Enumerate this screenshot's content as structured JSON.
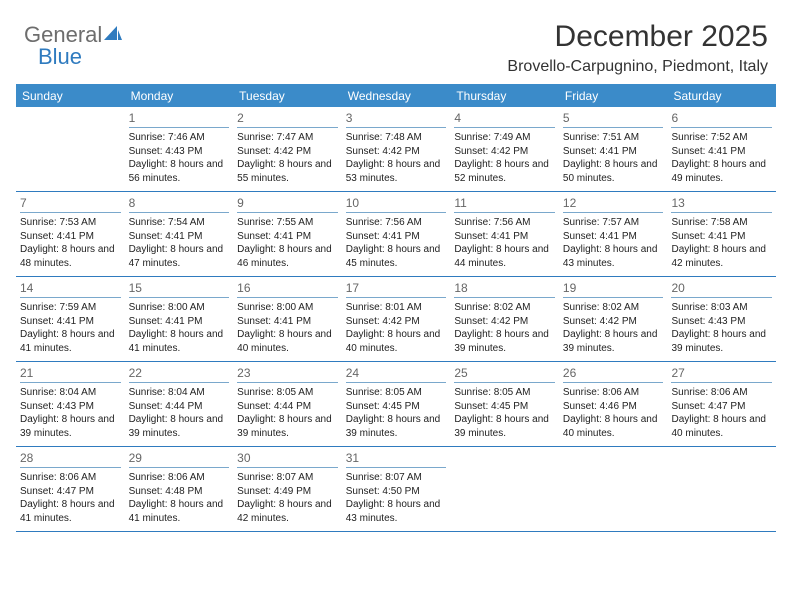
{
  "logo": {
    "part1": "General",
    "part2": "Blue"
  },
  "title": "December 2025",
  "subtitle": "Brovello-Carpugnino, Piedmont, Italy",
  "colors": {
    "header_bg": "#3b8bc9",
    "header_text": "#ffffff",
    "divider": "#2f7bbf",
    "daynum_border": "#7aa8cc",
    "body_text": "#222222",
    "daynum_text": "#666666",
    "logo_gray": "#6d6d6d",
    "logo_blue": "#2f7bbf",
    "background": "#ffffff"
  },
  "typography": {
    "title_fontsize": 30,
    "subtitle_fontsize": 16,
    "dayheader_fontsize": 12,
    "daynum_fontsize": 12,
    "info_fontsize": 10,
    "font_family": "Arial"
  },
  "layout": {
    "columns": 7,
    "rows": 5,
    "cell_min_height": 82
  },
  "day_headers": [
    "Sunday",
    "Monday",
    "Tuesday",
    "Wednesday",
    "Thursday",
    "Friday",
    "Saturday"
  ],
  "weeks": [
    [
      {
        "day": "",
        "sunrise": "",
        "sunset": "",
        "daylight": ""
      },
      {
        "day": "1",
        "sunrise": "7:46 AM",
        "sunset": "4:43 PM",
        "daylight": "8 hours and 56 minutes."
      },
      {
        "day": "2",
        "sunrise": "7:47 AM",
        "sunset": "4:42 PM",
        "daylight": "8 hours and 55 minutes."
      },
      {
        "day": "3",
        "sunrise": "7:48 AM",
        "sunset": "4:42 PM",
        "daylight": "8 hours and 53 minutes."
      },
      {
        "day": "4",
        "sunrise": "7:49 AM",
        "sunset": "4:42 PM",
        "daylight": "8 hours and 52 minutes."
      },
      {
        "day": "5",
        "sunrise": "7:51 AM",
        "sunset": "4:41 PM",
        "daylight": "8 hours and 50 minutes."
      },
      {
        "day": "6",
        "sunrise": "7:52 AM",
        "sunset": "4:41 PM",
        "daylight": "8 hours and 49 minutes."
      }
    ],
    [
      {
        "day": "7",
        "sunrise": "7:53 AM",
        "sunset": "4:41 PM",
        "daylight": "8 hours and 48 minutes."
      },
      {
        "day": "8",
        "sunrise": "7:54 AM",
        "sunset": "4:41 PM",
        "daylight": "8 hours and 47 minutes."
      },
      {
        "day": "9",
        "sunrise": "7:55 AM",
        "sunset": "4:41 PM",
        "daylight": "8 hours and 46 minutes."
      },
      {
        "day": "10",
        "sunrise": "7:56 AM",
        "sunset": "4:41 PM",
        "daylight": "8 hours and 45 minutes."
      },
      {
        "day": "11",
        "sunrise": "7:56 AM",
        "sunset": "4:41 PM",
        "daylight": "8 hours and 44 minutes."
      },
      {
        "day": "12",
        "sunrise": "7:57 AM",
        "sunset": "4:41 PM",
        "daylight": "8 hours and 43 minutes."
      },
      {
        "day": "13",
        "sunrise": "7:58 AM",
        "sunset": "4:41 PM",
        "daylight": "8 hours and 42 minutes."
      }
    ],
    [
      {
        "day": "14",
        "sunrise": "7:59 AM",
        "sunset": "4:41 PM",
        "daylight": "8 hours and 41 minutes."
      },
      {
        "day": "15",
        "sunrise": "8:00 AM",
        "sunset": "4:41 PM",
        "daylight": "8 hours and 41 minutes."
      },
      {
        "day": "16",
        "sunrise": "8:00 AM",
        "sunset": "4:41 PM",
        "daylight": "8 hours and 40 minutes."
      },
      {
        "day": "17",
        "sunrise": "8:01 AM",
        "sunset": "4:42 PM",
        "daylight": "8 hours and 40 minutes."
      },
      {
        "day": "18",
        "sunrise": "8:02 AM",
        "sunset": "4:42 PM",
        "daylight": "8 hours and 39 minutes."
      },
      {
        "day": "19",
        "sunrise": "8:02 AM",
        "sunset": "4:42 PM",
        "daylight": "8 hours and 39 minutes."
      },
      {
        "day": "20",
        "sunrise": "8:03 AM",
        "sunset": "4:43 PM",
        "daylight": "8 hours and 39 minutes."
      }
    ],
    [
      {
        "day": "21",
        "sunrise": "8:04 AM",
        "sunset": "4:43 PM",
        "daylight": "8 hours and 39 minutes."
      },
      {
        "day": "22",
        "sunrise": "8:04 AM",
        "sunset": "4:44 PM",
        "daylight": "8 hours and 39 minutes."
      },
      {
        "day": "23",
        "sunrise": "8:05 AM",
        "sunset": "4:44 PM",
        "daylight": "8 hours and 39 minutes."
      },
      {
        "day": "24",
        "sunrise": "8:05 AM",
        "sunset": "4:45 PM",
        "daylight": "8 hours and 39 minutes."
      },
      {
        "day": "25",
        "sunrise": "8:05 AM",
        "sunset": "4:45 PM",
        "daylight": "8 hours and 39 minutes."
      },
      {
        "day": "26",
        "sunrise": "8:06 AM",
        "sunset": "4:46 PM",
        "daylight": "8 hours and 40 minutes."
      },
      {
        "day": "27",
        "sunrise": "8:06 AM",
        "sunset": "4:47 PM",
        "daylight": "8 hours and 40 minutes."
      }
    ],
    [
      {
        "day": "28",
        "sunrise": "8:06 AM",
        "sunset": "4:47 PM",
        "daylight": "8 hours and 41 minutes."
      },
      {
        "day": "29",
        "sunrise": "8:06 AM",
        "sunset": "4:48 PM",
        "daylight": "8 hours and 41 minutes."
      },
      {
        "day": "30",
        "sunrise": "8:07 AM",
        "sunset": "4:49 PM",
        "daylight": "8 hours and 42 minutes."
      },
      {
        "day": "31",
        "sunrise": "8:07 AM",
        "sunset": "4:50 PM",
        "daylight": "8 hours and 43 minutes."
      },
      {
        "day": "",
        "sunrise": "",
        "sunset": "",
        "daylight": ""
      },
      {
        "day": "",
        "sunrise": "",
        "sunset": "",
        "daylight": ""
      },
      {
        "day": "",
        "sunrise": "",
        "sunset": "",
        "daylight": ""
      }
    ]
  ]
}
